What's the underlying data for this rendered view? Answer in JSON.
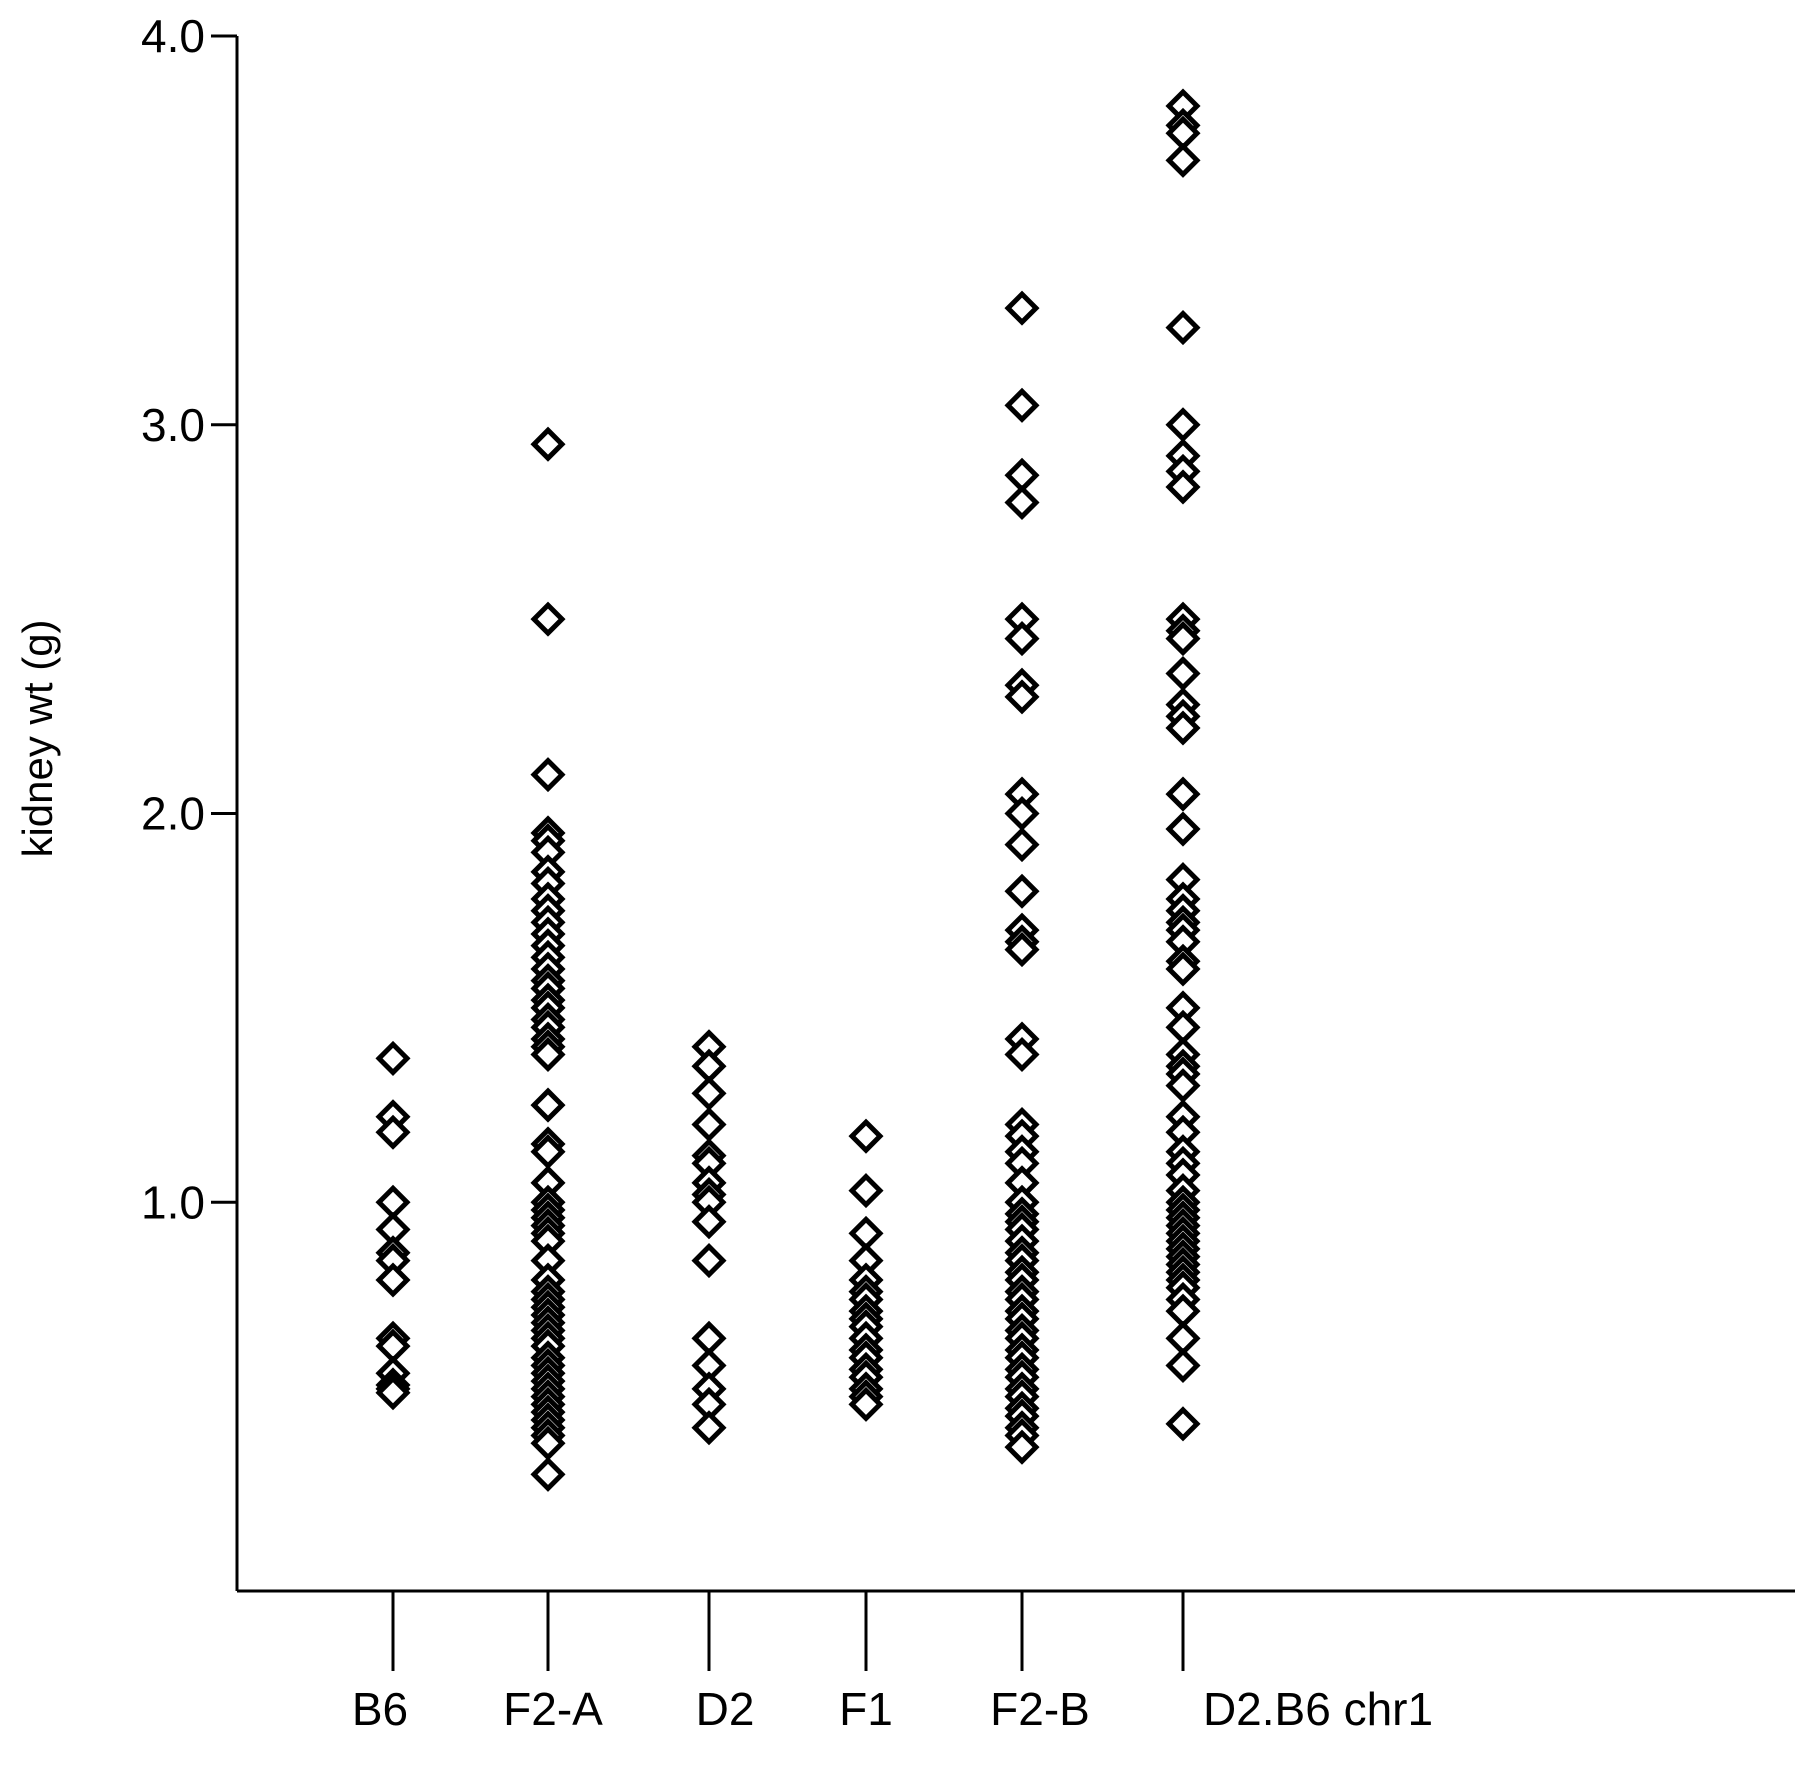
{
  "chart_data": {
    "type": "scatter",
    "title": "",
    "xlabel": "",
    "ylabel": "kidney wt (g)",
    "ylim": [
      0,
      4.0
    ],
    "yticks": [
      "1.0",
      "2.0",
      "3.0",
      "4.0"
    ],
    "ytick_values": [
      1.0,
      2.0,
      3.0,
      4.0
    ],
    "grid": false,
    "legend": "none",
    "marker": "open-diamond",
    "categories": [
      "B6",
      "F2-A",
      "D2",
      "F1",
      "F2-B",
      "D2.B6 chr1"
    ],
    "series": [
      {
        "category": "B6",
        "values": [
          1.37,
          1.22,
          1.18,
          1.0,
          0.93,
          0.87,
          0.85,
          0.8,
          0.65,
          0.63,
          0.56,
          0.53,
          0.52,
          0.51
        ]
      },
      {
        "category": "F2-A",
        "values": [
          2.95,
          2.5,
          2.1,
          1.95,
          1.93,
          1.9,
          1.85,
          1.82,
          1.78,
          1.75,
          1.72,
          1.69,
          1.66,
          1.63,
          1.6,
          1.57,
          1.55,
          1.52,
          1.5,
          1.47,
          1.45,
          1.42,
          1.4,
          1.38,
          1.25,
          1.15,
          1.13,
          1.05,
          1.0,
          0.98,
          0.96,
          0.94,
          0.92,
          0.9,
          0.85,
          0.8,
          0.77,
          0.75,
          0.73,
          0.71,
          0.69,
          0.67,
          0.65,
          0.63,
          0.6,
          0.58,
          0.56,
          0.54,
          0.52,
          0.5,
          0.48,
          0.46,
          0.44,
          0.42,
          0.4,
          0.38,
          0.3
        ]
      },
      {
        "category": "D2",
        "values": [
          1.4,
          1.35,
          1.28,
          1.2,
          1.12,
          1.1,
          1.05,
          1.02,
          1.0,
          0.95,
          0.85,
          0.65,
          0.58,
          0.52,
          0.48,
          0.42
        ]
      },
      {
        "category": "F1",
        "values": [
          1.17,
          1.03,
          0.92,
          0.85,
          0.8,
          0.77,
          0.75,
          0.72,
          0.7,
          0.68,
          0.65,
          0.62,
          0.6,
          0.57,
          0.55,
          0.52,
          0.5,
          0.48
        ]
      },
      {
        "category": "F2-B",
        "values": [
          3.3,
          3.05,
          2.87,
          2.8,
          2.5,
          2.45,
          2.33,
          2.3,
          2.05,
          2.0,
          1.92,
          1.8,
          1.7,
          1.67,
          1.65,
          1.42,
          1.38,
          1.2,
          1.17,
          1.13,
          1.1,
          1.05,
          1.0,
          0.97,
          0.95,
          0.93,
          0.9,
          0.87,
          0.85,
          0.82,
          0.8,
          0.77,
          0.75,
          0.72,
          0.7,
          0.67,
          0.65,
          0.62,
          0.6,
          0.57,
          0.55,
          0.52,
          0.5,
          0.47,
          0.45,
          0.42,
          0.4,
          0.37
        ]
      },
      {
        "category": "D2.B6 chr1",
        "values": [
          3.82,
          3.77,
          3.75,
          3.68,
          3.25,
          3.0,
          2.92,
          2.88,
          2.84,
          2.5,
          2.47,
          2.45,
          2.36,
          2.28,
          2.25,
          2.22,
          2.05,
          1.96,
          1.83,
          1.78,
          1.75,
          1.72,
          1.7,
          1.67,
          1.62,
          1.6,
          1.5,
          1.45,
          1.38,
          1.35,
          1.33,
          1.3,
          1.22,
          1.18,
          1.13,
          1.1,
          1.07,
          1.03,
          1.0,
          0.98,
          0.96,
          0.94,
          0.92,
          0.9,
          0.88,
          0.86,
          0.84,
          0.82,
          0.8,
          0.78,
          0.75,
          0.72,
          0.65,
          0.58,
          0.43
        ]
      }
    ]
  }
}
